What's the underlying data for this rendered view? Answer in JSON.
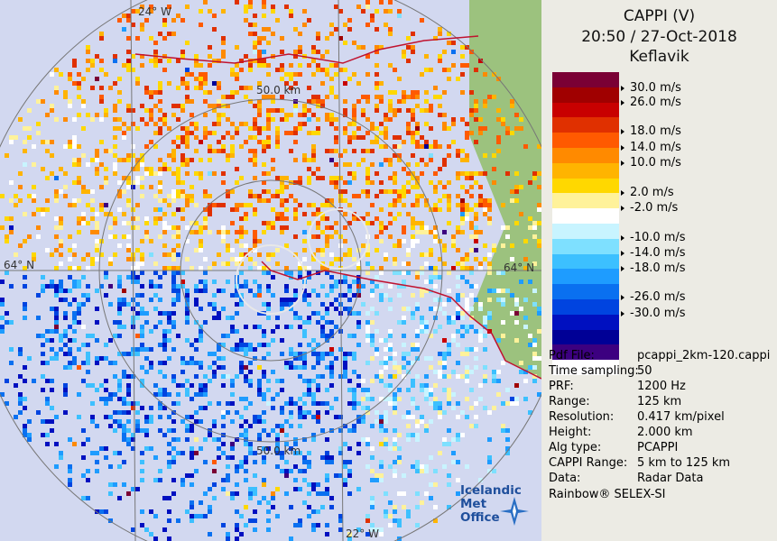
{
  "map": {
    "labels": {
      "lon_top": "24° W",
      "lon_bottom": "22° W",
      "lat_left": "64° N",
      "lat_right": "64° N",
      "range_ring": "50.0 km",
      "range_ring_lower": "50.0 km"
    },
    "logo": {
      "line1": "Icelandic Met",
      "line2": "Office"
    },
    "colors": {
      "sea": "#d2d8f0",
      "land": "#9cc27e",
      "coast": "#c0122f",
      "grid": "#777777"
    }
  },
  "panel": {
    "title_line1": "CAPPI (V)",
    "title_line2": "20:50 / 27-Oct-2018",
    "title_line3": "Keflavik",
    "scale_colors": [
      "#7a0034",
      "#a00000",
      "#c80000",
      "#e03000",
      "#ff5a00",
      "#ff8a00",
      "#ffb400",
      "#ffd800",
      "#fff29a",
      "#ffffff",
      "#c8f4ff",
      "#7ee0ff",
      "#3cc0ff",
      "#1e9cff",
      "#0a70f0",
      "#0044e0",
      "#0010c0",
      "#000096",
      "#3c0080",
      "#ffffff"
    ],
    "scale_labels": [
      "30.0 m/s",
      "26.0 m/s",
      "18.0 m/s",
      "14.0 m/s",
      "10.0 m/s",
      "2.0 m/s",
      "-2.0 m/s",
      "-10.0 m/s",
      "-14.0 m/s",
      "-18.0 m/s",
      "-26.0 m/s",
      "-30.0 m/s"
    ],
    "info": [
      {
        "key": "Pdf File:",
        "value": "pcappi_2km-120.cappi"
      },
      {
        "key": "Time sampling:",
        "value": "50"
      },
      {
        "key": "PRF:",
        "value": "1200 Hz"
      },
      {
        "key": "Range:",
        "value": "125 km"
      },
      {
        "key": "Resolution:",
        "value": "0.417 km/pixel"
      },
      {
        "key": "Height:",
        "value": "2.000 km"
      },
      {
        "key": "Alg type:",
        "value": "PCAPPI"
      },
      {
        "key": "CAPPI Range:",
        "value": "5 km to 125 km"
      },
      {
        "key": "Data:",
        "value": "Radar Data"
      }
    ],
    "footer": "Rainbow® SELEX-SI"
  }
}
